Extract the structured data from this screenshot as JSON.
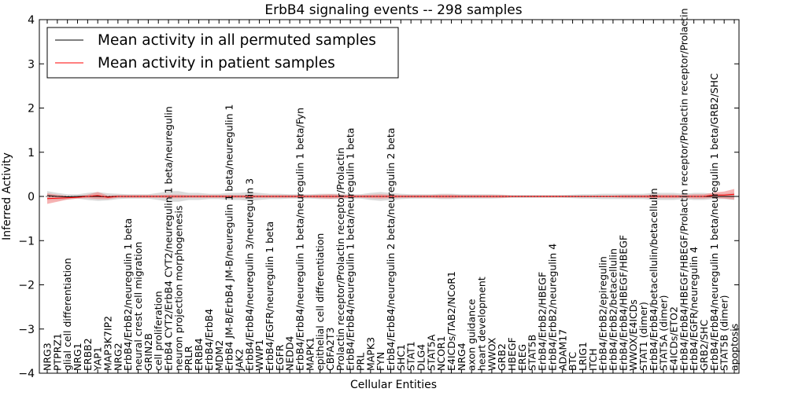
{
  "chart_data": {
    "type": "line",
    "title": "ErbB4 signaling events -- 298 samples",
    "xlabel": "Cellular Entities",
    "ylabel": "Inferred Activity",
    "ylim": [
      -4,
      4
    ],
    "yticks": [
      -4,
      -3,
      -2,
      -1,
      0,
      1,
      2,
      3,
      4
    ],
    "legend_position": "top-left",
    "categories": [
      "NRG3",
      "PTPRZ1",
      "glial cell differentiation",
      "NRG1",
      "ERBB2",
      "YAP1",
      "MAP3K7IP2",
      "NRG2",
      "ErbB4/ErbB2/neuregulin 1 beta",
      "neural crest cell migration",
      "GRIN2B",
      "cell proliferation",
      "ErbB4 CYT2/ErbB4 CYT2/neuregulin 1 beta/neuregulin",
      "neuron projection morphogenesis",
      "PRLR",
      "ERBB4",
      "ErbB4/ErbB4",
      "MDM2",
      "ErbB4 JM-B/ErbB4 JM-B/neuregulin 1 beta/neuregulin 1",
      "JAK2",
      "ErbB4/ErbB4/neuregulin 3/neuregulin 3",
      "WWP1",
      "ErbB4/EGFR/neuregulin 1 beta",
      "EGFR",
      "NEDD4",
      "ErbB4/ErbB4/neuregulin 1 beta/neuregulin 1 beta/Fyn",
      "MAPK1",
      "epithelial cell differentiation",
      "CBFA2T3",
      "Prolactin receptor/Prolactin receptor/Prolactin",
      "ErbB4/ErbB4/neuregulin 1 beta/neuregulin 1 beta",
      "PRL",
      "MAPK3",
      "FYN",
      "ErbB4/ErbB4/neuregulin 2 beta/neuregulin 2 beta",
      "SHC1",
      "STAT1",
      "DLG4",
      "STAT5A",
      "NCOR1",
      "E4ICDs/TAB2/NCoR1",
      "NRG4",
      "axon guidance",
      "heart development",
      "WWOX",
      "GRB2",
      "HBEGF",
      "EREG",
      "STAT5B",
      "ErbB4/ErbB2/HBEGF",
      "ErbB4/ErbB2/neuregulin 4",
      "ADAM17",
      "BTC",
      "LRIG1",
      "ITCH",
      "ErbB4/ErbB2/epiregulin",
      "ErbB4/ErbB2/betacellulin",
      "ErbB4/ErbB4/HBEGF/HBEGF",
      "WWOX/E4ICDs",
      "STAT1 (dimer)",
      "ErbB4/ErbB4/betacellulin/betacellulin",
      "STAT5A (dimer)",
      "E4ICDs/ETO2",
      "ErbB4/ErbB4/HBEGF/HBEGF/Prolactin receptor/Prolactin receptor/Prolactin",
      "ErbB4/EGFR/neuregulin 4",
      "GRB2/SHC",
      "ErbB4/ErbB4/neuregulin 1 beta/neuregulin 1 beta/GRB2/SHC",
      "STAT5B (dimer)",
      "apoptosis"
    ],
    "series": [
      {
        "name": "Mean activity in all permuted samples",
        "color": "#000000",
        "band_color": "#bbbbbb",
        "values": [
          0.02,
          0.0,
          -0.01,
          0.0,
          0.0,
          0.0,
          -0.01,
          0.0,
          0.0,
          0.0,
          0.0,
          0.0,
          0.0,
          0.0,
          0.0,
          0.0,
          0.0,
          0.0,
          0.0,
          0.0,
          0.0,
          0.0,
          0.0,
          0.0,
          0.0,
          0.0,
          0.0,
          0.0,
          0.0,
          0.0,
          0.0,
          0.0,
          0.0,
          0.0,
          0.0,
          0.0,
          0.0,
          0.0,
          0.0,
          0.0,
          0.0,
          0.0,
          0.0,
          0.0,
          0.0,
          0.0,
          0.0,
          0.0,
          0.0,
          0.0,
          0.0,
          0.0,
          0.0,
          0.0,
          0.0,
          0.0,
          0.0,
          0.0,
          0.0,
          0.0,
          0.0,
          0.0,
          0.0,
          0.0,
          0.0,
          0.0,
          0.0,
          0.0,
          0.0
        ],
        "band": [
          0.1,
          0.08,
          0.06,
          0.05,
          0.08,
          0.1,
          0.08,
          0.06,
          0.05,
          0.05,
          0.05,
          0.08,
          0.12,
          0.12,
          0.08,
          0.08,
          0.06,
          0.06,
          0.08,
          0.08,
          0.1,
          0.08,
          0.06,
          0.06,
          0.05,
          0.05,
          0.05,
          0.06,
          0.06,
          0.06,
          0.05,
          0.05,
          0.08,
          0.1,
          0.08,
          0.06,
          0.05,
          0.05,
          0.05,
          0.06,
          0.06,
          0.05,
          0.05,
          0.05,
          0.05,
          0.04,
          0.03,
          0.03,
          0.03,
          0.03,
          0.03,
          0.03,
          0.04,
          0.05,
          0.05,
          0.06,
          0.06,
          0.06,
          0.06,
          0.06,
          0.08,
          0.08,
          0.08,
          0.06,
          0.08,
          0.08,
          0.06,
          0.06,
          0.08
        ]
      },
      {
        "name": "Mean activity in patient samples",
        "color": "#ff0000",
        "band_color": "#f08080",
        "values": [
          -0.05,
          -0.04,
          -0.03,
          -0.02,
          0.0,
          0.02,
          -0.02,
          0.0,
          0.0,
          0.0,
          0.0,
          0.0,
          0.0,
          0.0,
          0.0,
          0.0,
          0.0,
          0.0,
          0.0,
          0.0,
          0.0,
          0.0,
          0.0,
          0.0,
          0.0,
          0.0,
          0.0,
          0.0,
          0.0,
          0.0,
          0.0,
          0.0,
          0.0,
          0.0,
          0.0,
          0.0,
          0.0,
          0.0,
          0.0,
          0.0,
          0.0,
          0.0,
          0.0,
          0.0,
          0.0,
          0.0,
          0.0,
          0.0,
          0.0,
          0.0,
          0.0,
          0.0,
          0.0,
          0.0,
          0.0,
          0.0,
          0.0,
          0.0,
          0.0,
          0.0,
          0.0,
          0.0,
          0.0,
          0.0,
          0.0,
          0.0,
          0.03,
          0.03,
          0.05
        ],
        "band": [
          0.12,
          0.08,
          0.04,
          0.03,
          0.04,
          0.08,
          0.04,
          0.03,
          0.03,
          0.03,
          0.03,
          0.03,
          0.04,
          0.04,
          0.03,
          0.03,
          0.03,
          0.03,
          0.03,
          0.03,
          0.03,
          0.03,
          0.03,
          0.03,
          0.03,
          0.03,
          0.03,
          0.04,
          0.05,
          0.04,
          0.03,
          0.03,
          0.04,
          0.05,
          0.04,
          0.03,
          0.03,
          0.03,
          0.03,
          0.04,
          0.04,
          0.03,
          0.03,
          0.03,
          0.03,
          0.03,
          0.02,
          0.02,
          0.02,
          0.02,
          0.02,
          0.02,
          0.02,
          0.02,
          0.02,
          0.02,
          0.02,
          0.03,
          0.03,
          0.03,
          0.04,
          0.04,
          0.04,
          0.03,
          0.05,
          0.05,
          0.06,
          0.08,
          0.12
        ]
      }
    ]
  }
}
